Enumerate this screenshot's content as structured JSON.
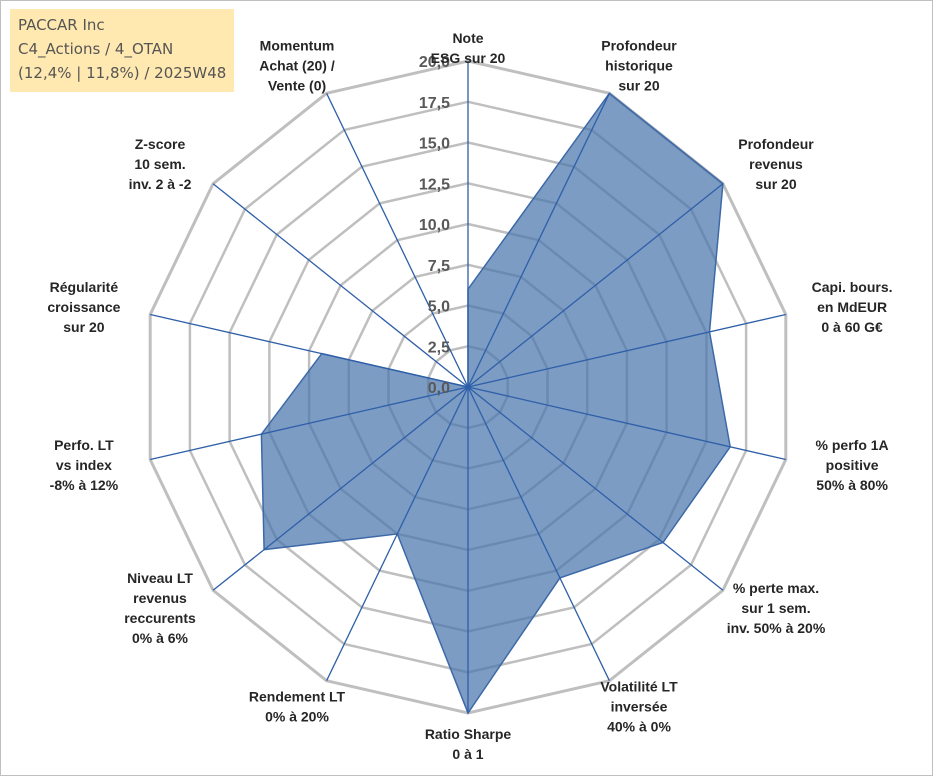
{
  "title_box": {
    "line1": "PACCAR Inc",
    "line2": "C4_Actions / 4_OTAN",
    "line3": "(12,4% | 11,8%) / 2025W48"
  },
  "chart_data": {
    "type": "radar",
    "title": "PACCAR Inc",
    "rlim": [
      0,
      20
    ],
    "ticks": [
      "0,0",
      "2,5",
      "5,0",
      "7,5",
      "10,0",
      "12,5",
      "15,0",
      "17,5",
      "20,0"
    ],
    "tick_values": [
      0,
      2.5,
      5,
      7.5,
      10,
      12.5,
      15,
      17.5,
      20
    ],
    "categories": [
      [
        "Note",
        "ESG sur 20"
      ],
      [
        "Profondeur",
        "historique",
        "sur 20"
      ],
      [
        "Profondeur",
        "revenus",
        "sur 20"
      ],
      [
        "Capi. bours.",
        "en MdEUR",
        "0 à 60 G€"
      ],
      [
        "% perfo 1A",
        "positive",
        "50% à 80%"
      ],
      [
        "% perte max.",
        "sur 1 sem.",
        "inv. 50% à 20%"
      ],
      [
        "Volatilité LT",
        "inversée",
        "40% à 0%"
      ],
      [
        "Ratio Sharpe",
        "0 à 1"
      ],
      [
        "Rendement LT",
        "0% à 20%"
      ],
      [
        "Niveau LT",
        "revenus",
        "reccurents",
        "0% à 6%"
      ],
      [
        "Perfo. LT",
        "vs index",
        "-8% à 12%"
      ],
      [
        "Régularité",
        "croissance",
        "sur 20"
      ],
      [
        "Z-score",
        "10 sem.",
        "inv. 2 à -2"
      ],
      [
        "Momentum",
        "Achat (20) /",
        "Vente (0)"
      ]
    ],
    "series": [
      {
        "name": "PACCAR Inc",
        "values": [
          6.0,
          20.0,
          20.0,
          15.2,
          16.5,
          15.3,
          13.0,
          20.0,
          10.0,
          16.0,
          13.0,
          9.2,
          0.0,
          0.0
        ],
        "color": "#4a76ad"
      }
    ],
    "grid": true,
    "axis_line_color": "#2e5fa8",
    "grid_color": "#bfbfbf"
  }
}
